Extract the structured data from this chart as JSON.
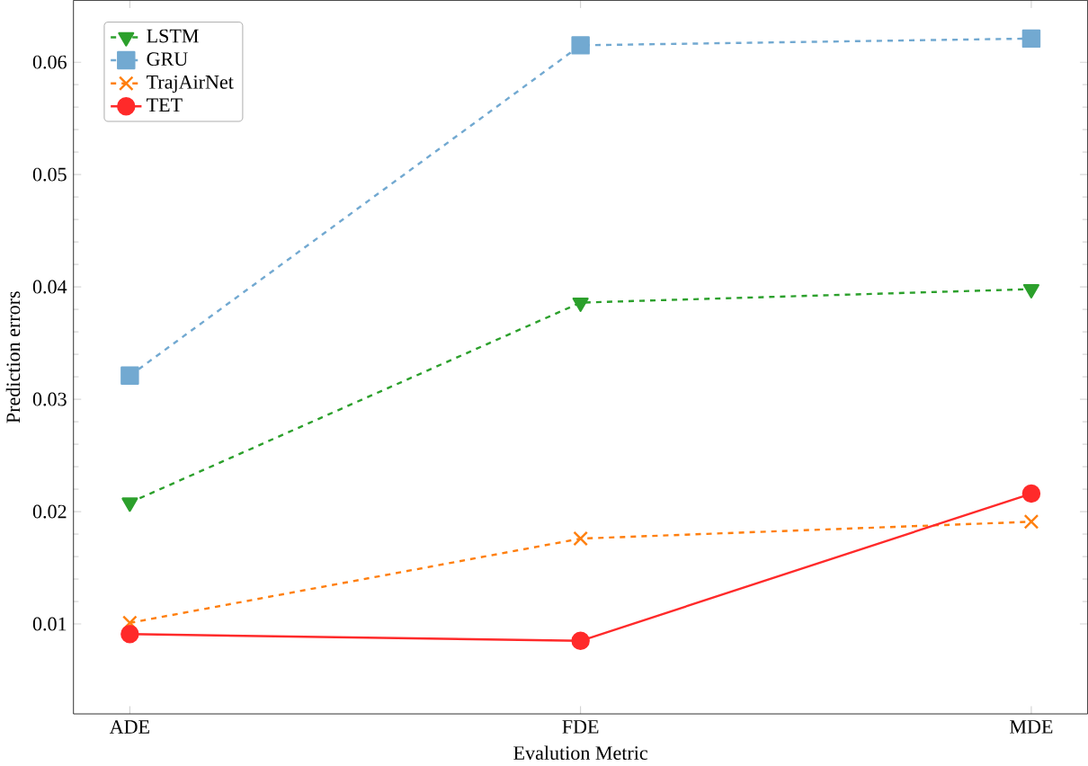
{
  "chart_data": {
    "type": "line",
    "xlabel": "Evalution Metric",
    "ylabel": "Prediction errors",
    "categories": [
      "ADE",
      "FDE",
      "MDE"
    ],
    "ylim": [
      0.002,
      0.0655
    ],
    "yticks": [
      0.01,
      0.02,
      0.03,
      0.04,
      0.05,
      0.06
    ],
    "legend": "top left",
    "grid": false,
    "series": [
      {
        "name": "LSTM",
        "color": "#2ca02c",
        "marker": "triangle-down",
        "line_style": "dashed",
        "values": [
          0.0208,
          0.0386,
          0.0398
        ]
      },
      {
        "name": "GRU",
        "color": "#72a9d1",
        "marker": "square",
        "line_style": "dashed",
        "values": [
          0.0321,
          0.0615,
          0.0621
        ]
      },
      {
        "name": "TrajAirNet",
        "color": "#ff7f0e",
        "marker": "cross",
        "line_style": "dashed",
        "values": [
          0.0101,
          0.0176,
          0.0191
        ]
      },
      {
        "name": "TET",
        "color": "#ff2a2a",
        "marker": "circle",
        "line_style": "solid",
        "values": [
          0.0091,
          0.0085,
          0.0216
        ]
      }
    ]
  }
}
